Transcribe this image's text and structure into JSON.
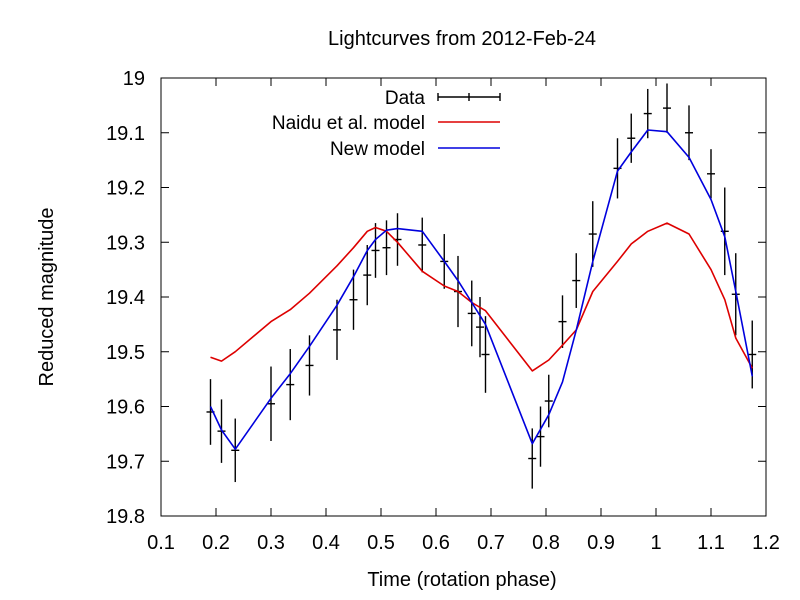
{
  "chart_data": {
    "type": "line",
    "title": "Lightcurves from 2012-Feb-24",
    "xlabel": "Time (rotation phase)",
    "ylabel": "Reduced magnitude",
    "xlim": [
      0.1,
      1.2
    ],
    "ylim": [
      19.8,
      19.0
    ],
    "y_inverted": true,
    "grid": false,
    "legend_position": "top-center",
    "x_ticks": [
      {
        "value": 0.1,
        "label": "0.1"
      },
      {
        "value": 0.2,
        "label": "0.2"
      },
      {
        "value": 0.3,
        "label": "0.3"
      },
      {
        "value": 0.4,
        "label": "0.4"
      },
      {
        "value": 0.5,
        "label": "0.5"
      },
      {
        "value": 0.6,
        "label": "0.6"
      },
      {
        "value": 0.7,
        "label": "0.7"
      },
      {
        "value": 0.8,
        "label": "0.8"
      },
      {
        "value": 0.9,
        "label": "0.9"
      },
      {
        "value": 1.0,
        "label": "1"
      },
      {
        "value": 1.1,
        "label": "1.1"
      },
      {
        "value": 1.2,
        "label": "1.2"
      }
    ],
    "y_ticks": [
      {
        "value": 19.0,
        "label": "19"
      },
      {
        "value": 19.1,
        "label": "19.1"
      },
      {
        "value": 19.2,
        "label": "19.2"
      },
      {
        "value": 19.3,
        "label": "19.3"
      },
      {
        "value": 19.4,
        "label": "19.4"
      },
      {
        "value": 19.5,
        "label": "19.5"
      },
      {
        "value": 19.6,
        "label": "19.6"
      },
      {
        "value": 19.7,
        "label": "19.7"
      },
      {
        "value": 19.8,
        "label": "19.8"
      }
    ],
    "series": [
      {
        "name": "Data",
        "kind": "errorbar",
        "color": "#000000",
        "points": [
          {
            "x": 0.19,
            "y": 19.61,
            "err": 0.06
          },
          {
            "x": 0.21,
            "y": 19.645,
            "err": 0.058
          },
          {
            "x": 0.235,
            "y": 19.68,
            "err": 0.058
          },
          {
            "x": 0.3,
            "y": 19.595,
            "err": 0.068
          },
          {
            "x": 0.335,
            "y": 19.56,
            "err": 0.065
          },
          {
            "x": 0.37,
            "y": 19.525,
            "err": 0.055
          },
          {
            "x": 0.42,
            "y": 19.46,
            "err": 0.055
          },
          {
            "x": 0.45,
            "y": 19.405,
            "err": 0.055
          },
          {
            "x": 0.475,
            "y": 19.36,
            "err": 0.055
          },
          {
            "x": 0.49,
            "y": 19.315,
            "err": 0.05
          },
          {
            "x": 0.51,
            "y": 19.31,
            "err": 0.05
          },
          {
            "x": 0.53,
            "y": 19.295,
            "err": 0.048
          },
          {
            "x": 0.575,
            "y": 19.305,
            "err": 0.05
          },
          {
            "x": 0.615,
            "y": 19.335,
            "err": 0.05
          },
          {
            "x": 0.64,
            "y": 19.39,
            "err": 0.065
          },
          {
            "x": 0.665,
            "y": 19.43,
            "err": 0.06
          },
          {
            "x": 0.68,
            "y": 19.455,
            "err": 0.055
          },
          {
            "x": 0.69,
            "y": 19.505,
            "err": 0.07
          },
          {
            "x": 0.775,
            "y": 19.695,
            "err": 0.055
          },
          {
            "x": 0.79,
            "y": 19.655,
            "err": 0.055
          },
          {
            "x": 0.805,
            "y": 19.59,
            "err": 0.048
          },
          {
            "x": 0.83,
            "y": 19.445,
            "err": 0.048
          },
          {
            "x": 0.855,
            "y": 19.37,
            "err": 0.05
          },
          {
            "x": 0.885,
            "y": 19.285,
            "err": 0.06
          },
          {
            "x": 0.93,
            "y": 19.165,
            "err": 0.055
          },
          {
            "x": 0.955,
            "y": 19.11,
            "err": 0.045
          },
          {
            "x": 0.985,
            "y": 19.065,
            "err": 0.045
          },
          {
            "x": 1.02,
            "y": 19.055,
            "err": 0.045
          },
          {
            "x": 1.06,
            "y": 19.1,
            "err": 0.05
          },
          {
            "x": 1.1,
            "y": 19.175,
            "err": 0.045
          },
          {
            "x": 1.125,
            "y": 19.28,
            "err": 0.08
          },
          {
            "x": 1.145,
            "y": 19.395,
            "err": 0.075
          },
          {
            "x": 1.175,
            "y": 19.505,
            "err": 0.062
          }
        ]
      },
      {
        "name": "Naidu et al. model",
        "kind": "line",
        "color": "#dd0000",
        "points": [
          {
            "x": 0.19,
            "y": 19.51
          },
          {
            "x": 0.21,
            "y": 19.517
          },
          {
            "x": 0.235,
            "y": 19.5
          },
          {
            "x": 0.3,
            "y": 19.445
          },
          {
            "x": 0.335,
            "y": 19.423
          },
          {
            "x": 0.37,
            "y": 19.393
          },
          {
            "x": 0.42,
            "y": 19.343
          },
          {
            "x": 0.45,
            "y": 19.31
          },
          {
            "x": 0.475,
            "y": 19.28
          },
          {
            "x": 0.49,
            "y": 19.273
          },
          {
            "x": 0.51,
            "y": 19.28
          },
          {
            "x": 0.53,
            "y": 19.3
          },
          {
            "x": 0.575,
            "y": 19.353
          },
          {
            "x": 0.615,
            "y": 19.38
          },
          {
            "x": 0.64,
            "y": 19.39
          },
          {
            "x": 0.665,
            "y": 19.41
          },
          {
            "x": 0.69,
            "y": 19.425
          },
          {
            "x": 0.775,
            "y": 19.535
          },
          {
            "x": 0.805,
            "y": 19.515
          },
          {
            "x": 0.83,
            "y": 19.488
          },
          {
            "x": 0.855,
            "y": 19.46
          },
          {
            "x": 0.885,
            "y": 19.39
          },
          {
            "x": 0.93,
            "y": 19.335
          },
          {
            "x": 0.955,
            "y": 19.303
          },
          {
            "x": 0.985,
            "y": 19.28
          },
          {
            "x": 1.02,
            "y": 19.265
          },
          {
            "x": 1.06,
            "y": 19.285
          },
          {
            "x": 1.1,
            "y": 19.35
          },
          {
            "x": 1.125,
            "y": 19.405
          },
          {
            "x": 1.145,
            "y": 19.475
          },
          {
            "x": 1.175,
            "y": 19.53
          }
        ]
      },
      {
        "name": "New model",
        "kind": "line",
        "color": "#0000dd",
        "points": [
          {
            "x": 0.19,
            "y": 19.6
          },
          {
            "x": 0.21,
            "y": 19.643
          },
          {
            "x": 0.235,
            "y": 19.678
          },
          {
            "x": 0.3,
            "y": 19.585
          },
          {
            "x": 0.335,
            "y": 19.54
          },
          {
            "x": 0.37,
            "y": 19.49
          },
          {
            "x": 0.42,
            "y": 19.415
          },
          {
            "x": 0.45,
            "y": 19.363
          },
          {
            "x": 0.475,
            "y": 19.315
          },
          {
            "x": 0.49,
            "y": 19.295
          },
          {
            "x": 0.51,
            "y": 19.278
          },
          {
            "x": 0.53,
            "y": 19.275
          },
          {
            "x": 0.575,
            "y": 19.28
          },
          {
            "x": 0.615,
            "y": 19.335
          },
          {
            "x": 0.64,
            "y": 19.37
          },
          {
            "x": 0.665,
            "y": 19.41
          },
          {
            "x": 0.69,
            "y": 19.45
          },
          {
            "x": 0.775,
            "y": 19.668
          },
          {
            "x": 0.805,
            "y": 19.615
          },
          {
            "x": 0.83,
            "y": 19.555
          },
          {
            "x": 0.855,
            "y": 19.46
          },
          {
            "x": 0.885,
            "y": 19.335
          },
          {
            "x": 0.93,
            "y": 19.17
          },
          {
            "x": 0.955,
            "y": 19.135
          },
          {
            "x": 0.985,
            "y": 19.095
          },
          {
            "x": 1.02,
            "y": 19.098
          },
          {
            "x": 1.06,
            "y": 19.145
          },
          {
            "x": 1.1,
            "y": 19.222
          },
          {
            "x": 1.125,
            "y": 19.29
          },
          {
            "x": 1.145,
            "y": 19.39
          },
          {
            "x": 1.175,
            "y": 19.545
          }
        ]
      }
    ]
  }
}
